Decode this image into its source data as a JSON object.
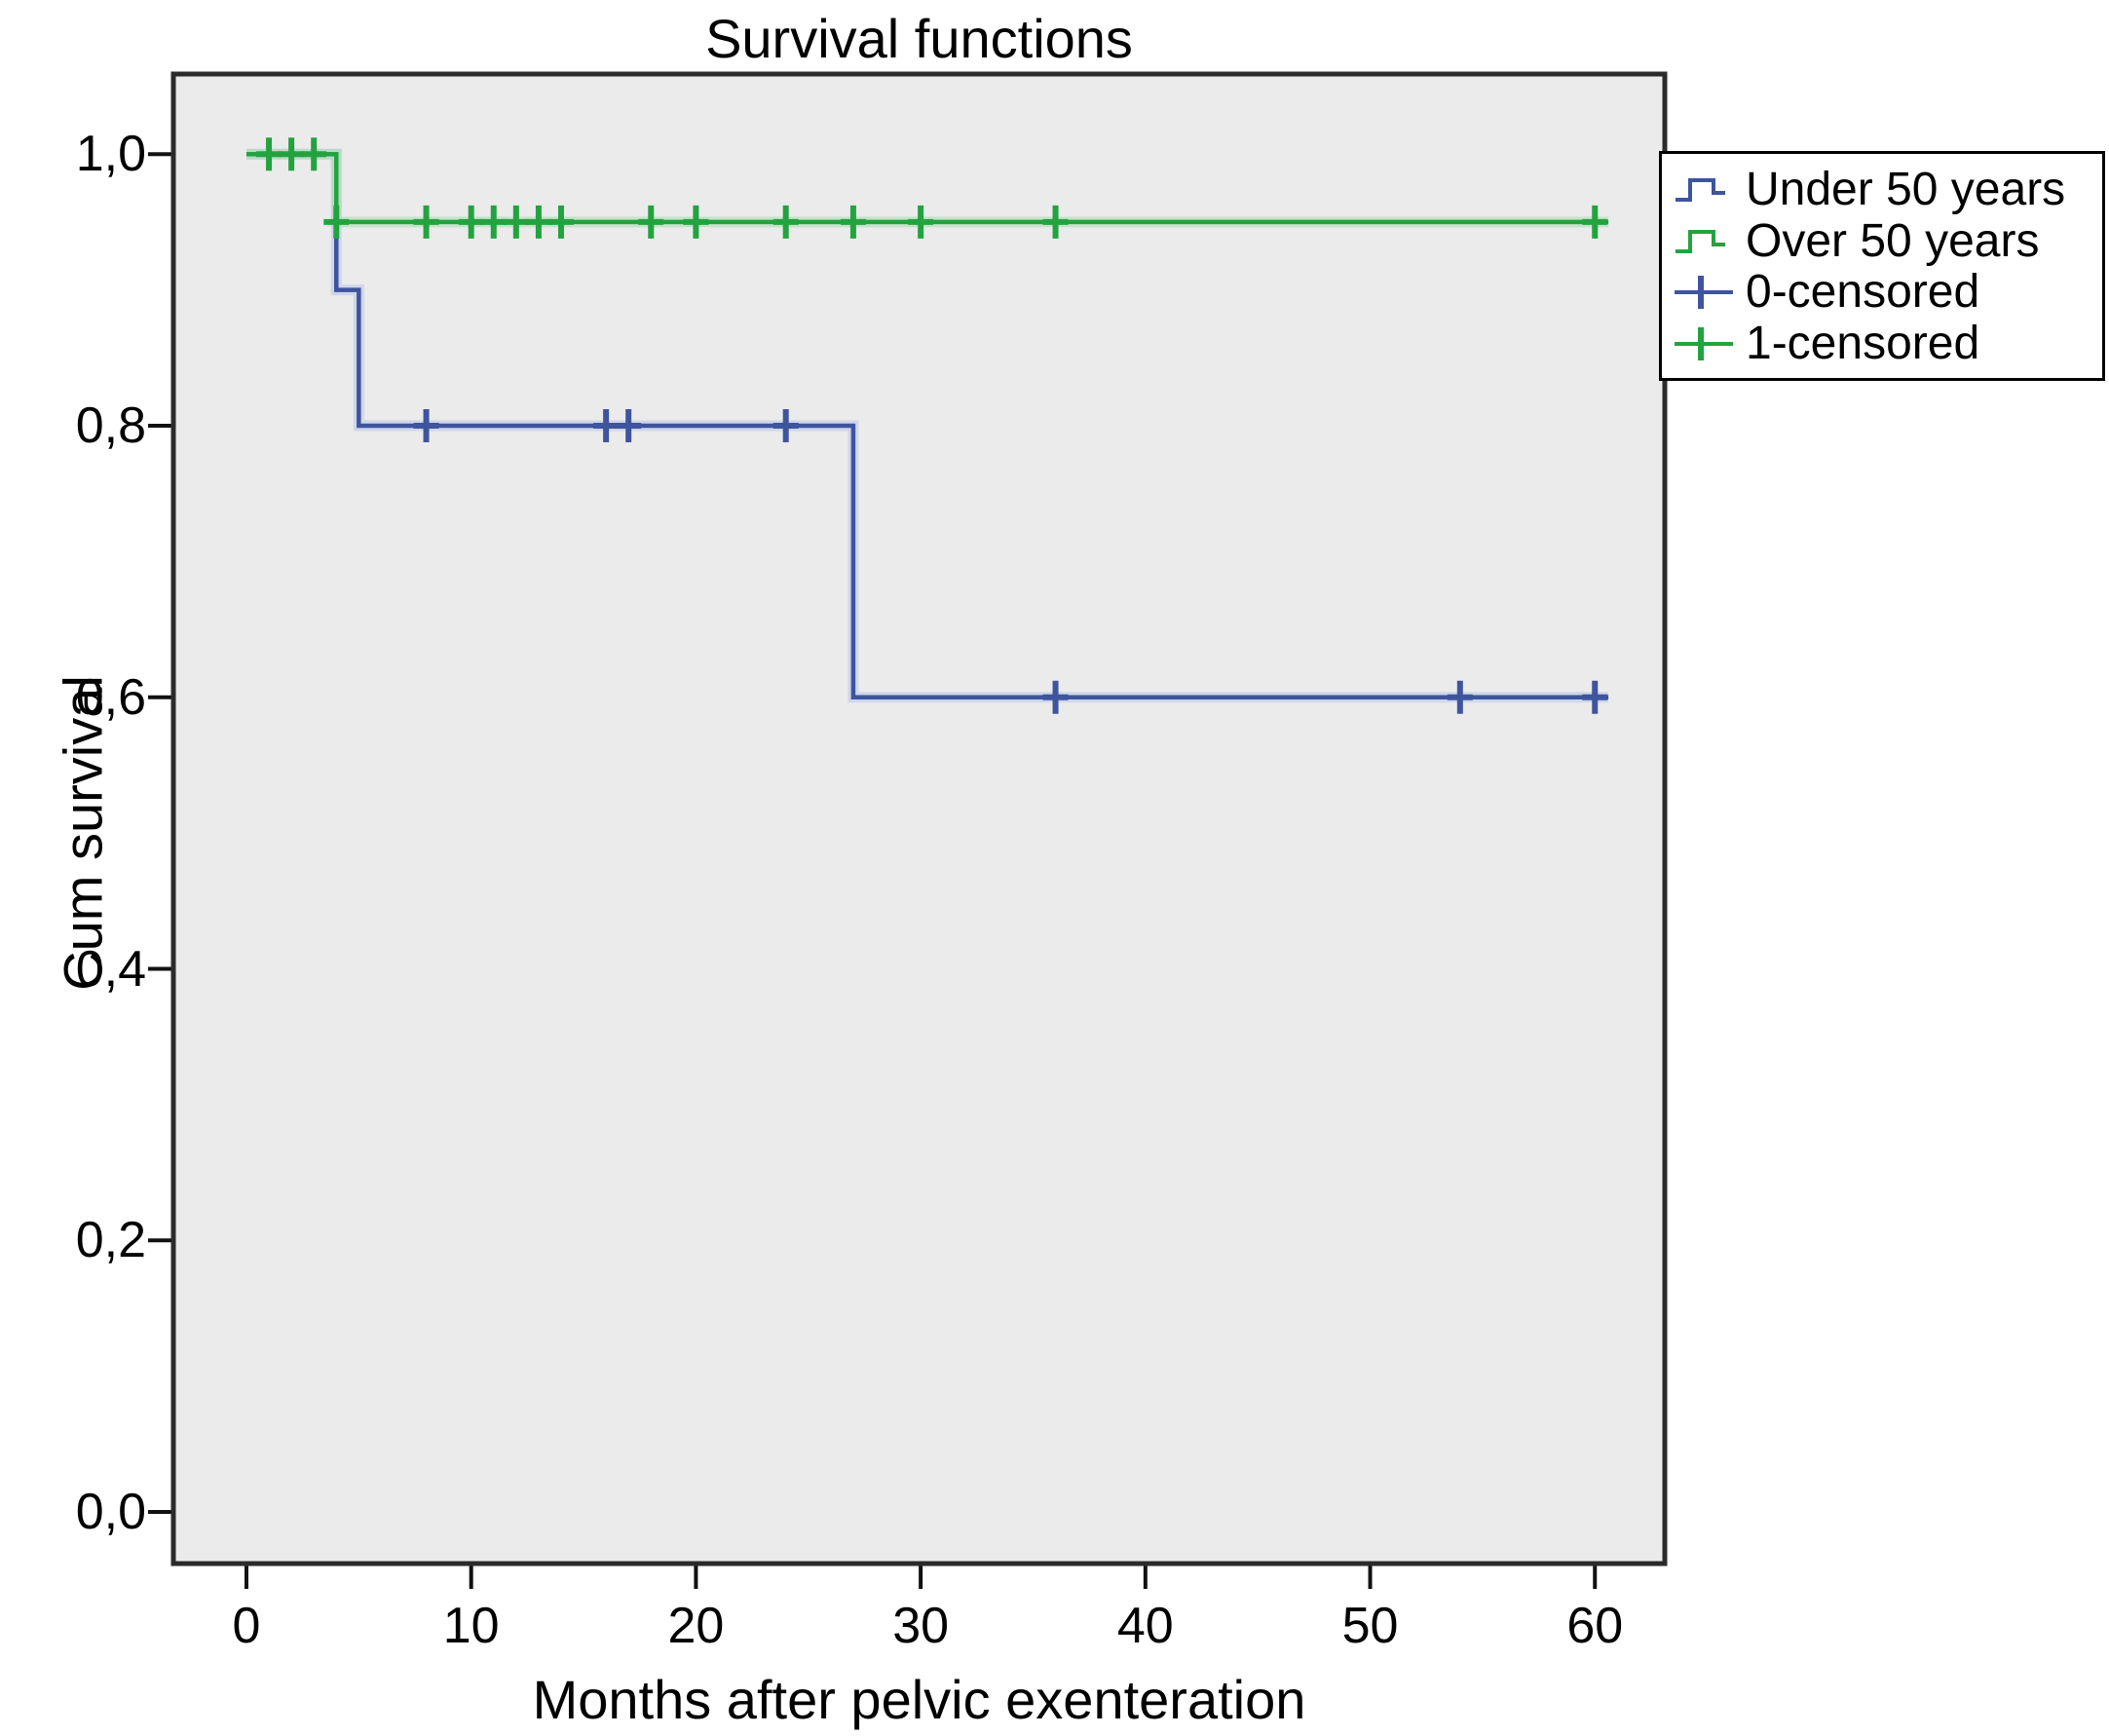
{
  "chart_data": {
    "type": "line",
    "subtype": "kaplan-meier-step-survival",
    "title": "Survival functions",
    "xlabel": "Months after pelvic exenteration",
    "ylabel": "Cum survival",
    "xlim": [
      -3.25,
      63.11
    ],
    "ylim": [
      -0.038,
      1.059
    ],
    "grid": false,
    "plot_background": "#ebebeb",
    "border_color": "#2b2b2b",
    "tick_color": "#111111",
    "legend_position": "top-right-outside",
    "xticks": [
      {
        "value": 0,
        "label": "0"
      },
      {
        "value": 10,
        "label": "10"
      },
      {
        "value": 20,
        "label": "20"
      },
      {
        "value": 30,
        "label": "30"
      },
      {
        "value": 40,
        "label": "40"
      },
      {
        "value": 50,
        "label": "50"
      },
      {
        "value": 60,
        "label": "60"
      }
    ],
    "yticks": [
      {
        "value": 1.0,
        "label": "1,0"
      },
      {
        "value": 0.8,
        "label": "0,8"
      },
      {
        "value": 0.6,
        "label": "0,6"
      },
      {
        "value": 0.4,
        "label": "0,4"
      },
      {
        "value": 0.2,
        "label": "0,2"
      },
      {
        "value": 0.0,
        "label": "0,0"
      }
    ],
    "series": [
      {
        "name": "Under 50 years",
        "color": "#3E549E",
        "halo_color": "#bcc8e8",
        "steps": [
          [
            0,
            1.0
          ],
          [
            4,
            1.0
          ],
          [
            4,
            0.9
          ],
          [
            5,
            0.9
          ],
          [
            5,
            0.8
          ],
          [
            27,
            0.8
          ],
          [
            27,
            0.6
          ],
          [
            60.6,
            0.6
          ]
        ],
        "censored": [
          [
            8,
            0.8
          ],
          [
            16,
            0.8
          ],
          [
            17,
            0.8
          ],
          [
            24,
            0.8
          ],
          [
            36,
            0.6
          ],
          [
            54,
            0.6
          ],
          [
            60,
            0.6
          ]
        ]
      },
      {
        "name": "Over 50 years",
        "color": "#23A33F",
        "halo_color": "#abdcb5",
        "steps": [
          [
            0,
            1.0
          ],
          [
            4,
            1.0
          ],
          [
            4,
            0.95
          ],
          [
            60.6,
            0.95
          ]
        ],
        "censored": [
          [
            1,
            1.0
          ],
          [
            2,
            1.0
          ],
          [
            3,
            1.0
          ],
          [
            4,
            0.95
          ],
          [
            8,
            0.95
          ],
          [
            10,
            0.95
          ],
          [
            11,
            0.95
          ],
          [
            12,
            0.95
          ],
          [
            13,
            0.95
          ],
          [
            14,
            0.95
          ],
          [
            18,
            0.95
          ],
          [
            20,
            0.95
          ],
          [
            24,
            0.95
          ],
          [
            27,
            0.95
          ],
          [
            30,
            0.95
          ],
          [
            36,
            0.95
          ],
          [
            60,
            0.95
          ]
        ]
      }
    ],
    "legend": [
      {
        "label": "Under 50 years",
        "symbol": "step",
        "color": "#3E549E"
      },
      {
        "label": "Over 50 years",
        "symbol": "step",
        "color": "#23A33F"
      },
      {
        "label": "0-censored",
        "symbol": "plus",
        "color": "#3E549E"
      },
      {
        "label": "1-censored",
        "symbol": "plus",
        "color": "#23A33F"
      }
    ]
  }
}
